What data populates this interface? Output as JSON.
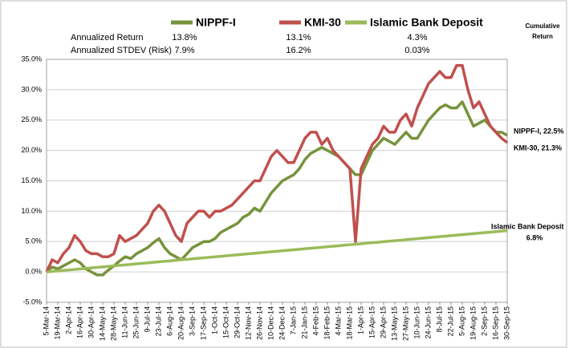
{
  "chart_data": {
    "type": "line",
    "stats": {
      "rows": [
        {
          "label": "Annualized Return",
          "values": [
            "13.8%",
            "13.1%",
            "4.3%"
          ]
        },
        {
          "label": "Annualized STDEV (Risk)",
          "values": [
            "7.9%",
            "16.2%",
            "0.03%"
          ]
        }
      ]
    },
    "cumulative_return_heading": [
      "Cumulative",
      "Return"
    ],
    "annotations": [
      "NIPPF-I, 22.5%",
      "KMI-30, 21.3%",
      "Islamic Bank Deposit",
      "6.8%"
    ],
    "categories": [
      "5-Mar-14",
      null,
      "19-Mar-14",
      null,
      "2-Apr-14",
      null,
      "16-Apr-14",
      null,
      "30-Apr-14",
      null,
      "14-May-14",
      null,
      "28-May-14",
      null,
      "11-Jun-14",
      null,
      "25-Jun-14",
      null,
      "9-Jul-14",
      null,
      "23-Jul-14",
      null,
      "6-Aug-14",
      null,
      "20-Aug-14",
      null,
      "3-Sep-14",
      null,
      "17-Sep-14",
      null,
      "1-Oct-14",
      null,
      "15-Oct-14",
      null,
      "29-Oct-14",
      null,
      "12-Nov-14",
      null,
      "26-Nov-14",
      null,
      "10-Dec-14",
      null,
      "24-Dec-14",
      null,
      "7-Jan-15",
      null,
      "21-Jan-15",
      null,
      "4-Feb-15",
      null,
      "18-Feb-15",
      null,
      "4-Mar-15",
      null,
      "18-Mar-15",
      null,
      "1-Apr-15",
      null,
      "15-Apr-15",
      null,
      "29-Apr-15",
      null,
      "13-May-15",
      null,
      "27-May-15",
      null,
      "10-Jun-15",
      null,
      "24-Jun-15",
      null,
      "8-Jul-15",
      null,
      "22-Jul-15",
      null,
      "5-Aug-15",
      null,
      "19-Aug-15",
      null,
      "2-Sep-15",
      null,
      "16-Sep-15",
      null,
      "30-Sep-15"
    ],
    "series": [
      {
        "name": "NIPPF-I",
        "color": "#77933c",
        "values": [
          0,
          0.8,
          0.5,
          1,
          1.5,
          2,
          1.5,
          0.5,
          0,
          -0.5,
          -0.5,
          0.3,
          1,
          1.8,
          2.5,
          2.2,
          3,
          3.5,
          4,
          4.8,
          5.5,
          4,
          3,
          2.5,
          2,
          3,
          4,
          4.5,
          5,
          5,
          5.5,
          6.5,
          7,
          7.5,
          8,
          9,
          9.5,
          10.5,
          10,
          11.5,
          13,
          14,
          15,
          15.5,
          16,
          17,
          18.5,
          19.5,
          20,
          20.5,
          20,
          19.5,
          19,
          18,
          17,
          16,
          16,
          18,
          20,
          21,
          22,
          21.5,
          21,
          22,
          23,
          22,
          22,
          23.5,
          25,
          26,
          27,
          27.5,
          27,
          27,
          28,
          26,
          24,
          24.5,
          25,
          24,
          23,
          23,
          22.5
        ]
      },
      {
        "name": "KMI-30",
        "color": "#c0504d",
        "values": [
          0,
          2,
          1.5,
          3,
          4,
          6,
          5,
          3.5,
          3,
          3,
          2.5,
          2.5,
          3,
          6,
          5,
          5.5,
          6,
          7,
          8,
          10,
          11,
          10,
          8,
          6,
          5,
          8,
          9,
          10,
          10,
          9,
          10,
          10,
          10.5,
          11,
          12,
          13,
          14,
          15,
          15,
          17,
          19,
          20,
          19,
          18,
          18,
          20,
          22,
          23,
          23,
          21,
          22,
          20,
          19,
          18,
          17,
          5,
          17,
          19,
          21,
          22,
          24,
          23,
          23,
          25,
          26,
          24,
          27,
          29,
          31,
          32,
          33,
          32,
          32,
          34,
          34,
          30,
          27,
          28,
          26,
          24,
          23,
          22,
          21.3
        ]
      },
      {
        "name": "Islamic Bank Deposit",
        "color": "#9bbb59",
        "values": [
          0,
          0.08,
          0.17,
          0.25,
          0.33,
          0.41,
          0.5,
          0.58,
          0.66,
          0.75,
          0.83,
          0.91,
          1.0,
          1.08,
          1.16,
          1.24,
          1.33,
          1.41,
          1.49,
          1.58,
          1.66,
          1.74,
          1.82,
          1.91,
          1.99,
          2.07,
          2.16,
          2.24,
          2.32,
          2.4,
          2.49,
          2.57,
          2.65,
          2.74,
          2.82,
          2.9,
          2.99,
          3.07,
          3.15,
          3.23,
          3.32,
          3.4,
          3.48,
          3.57,
          3.65,
          3.73,
          3.81,
          3.9,
          3.98,
          4.06,
          4.15,
          4.23,
          4.31,
          4.4,
          4.48,
          4.56,
          4.64,
          4.73,
          4.81,
          4.89,
          4.98,
          5.06,
          5.14,
          5.22,
          5.31,
          5.39,
          5.47,
          5.56,
          5.64,
          5.72,
          5.81,
          5.89,
          5.97,
          6.05,
          6.14,
          6.22,
          6.3,
          6.39,
          6.47,
          6.55,
          6.63,
          6.72,
          6.8
        ]
      }
    ],
    "ylim": [
      -5,
      35
    ],
    "yticks": [
      {
        "value": -5,
        "label": "-5.0%"
      },
      {
        "value": 0,
        "label": "0.0%"
      },
      {
        "value": 5,
        "label": "5.0%"
      },
      {
        "value": 10,
        "label": "10.0%"
      },
      {
        "value": 15,
        "label": "15.0%"
      },
      {
        "value": 20,
        "label": "20.0%"
      },
      {
        "value": 25,
        "label": "25.0%"
      },
      {
        "value": 30,
        "label": "30.0%"
      },
      {
        "value": 35,
        "label": "35.0%"
      }
    ],
    "grid": true
  }
}
